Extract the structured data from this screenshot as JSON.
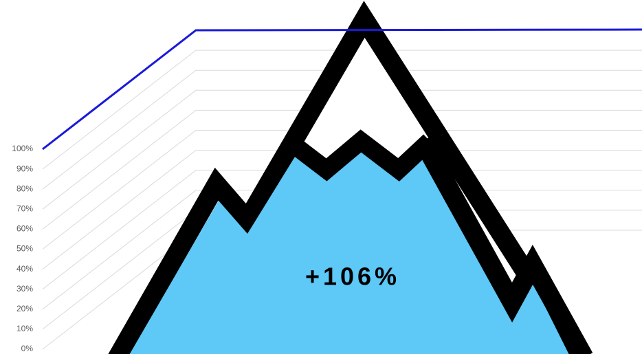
{
  "chart_data": {
    "type": "area",
    "annotation": "+106%",
    "ylim": [
      0,
      100
    ],
    "yticks": [
      {
        "value": 0,
        "label": "0%"
      },
      {
        "value": 10,
        "label": "10%"
      },
      {
        "value": 20,
        "label": "20%"
      },
      {
        "value": 30,
        "label": "30%"
      },
      {
        "value": 40,
        "label": "40%"
      },
      {
        "value": 50,
        "label": "50%"
      },
      {
        "value": 60,
        "label": "60%"
      },
      {
        "value": 70,
        "label": "70%"
      },
      {
        "value": 80,
        "label": "80%"
      },
      {
        "value": 90,
        "label": "90%"
      },
      {
        "value": 100,
        "label": "100%"
      }
    ],
    "grid": true
  }
}
